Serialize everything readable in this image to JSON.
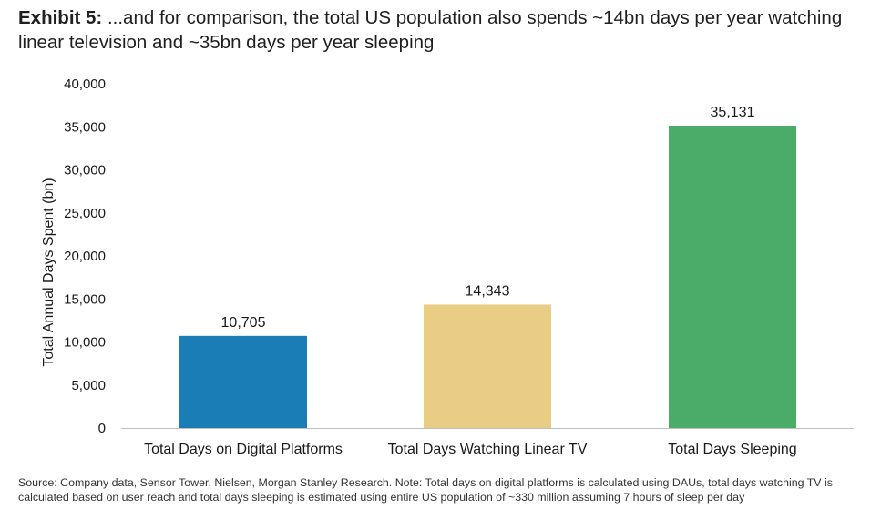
{
  "exhibit_label": "Exhibit 5:",
  "title_text": " ...and for comparison, the total US population also spends ~14bn days per year watching linear television and ~35bn days per year sleeping",
  "source_text": "Source: Company data, Sensor Tower, Nielsen, Morgan Stanley Research. Note: Total days on digital platforms is calculated using DAUs, total days watching TV is calculated based on user reach and total days sleeping is estimated using entire US population of ~330 million assuming 7 hours of sleep per day",
  "chart_data": {
    "type": "bar",
    "title": "...and for comparison, the total US population also spends ~14bn days per year watching linear television and ~35bn days per year sleeping",
    "xlabel": "",
    "ylabel": "Total Annual Days Spent (bn)",
    "ylim": [
      0,
      40000
    ],
    "yticks": [
      0,
      5000,
      10000,
      15000,
      20000,
      25000,
      30000,
      35000,
      40000
    ],
    "ytick_labels": [
      "0",
      "5,000",
      "10,000",
      "15,000",
      "20,000",
      "25,000",
      "30,000",
      "35,000",
      "40,000"
    ],
    "grid": false,
    "categories": [
      "Total Days on Digital Platforms",
      "Total Days Watching Linear TV",
      "Total Days Sleeping"
    ],
    "values": [
      10705,
      14343,
      35131
    ],
    "value_labels": [
      "10,705",
      "14,343",
      "35,131"
    ],
    "colors": [
      "#1a7db5",
      "#e9cd84",
      "#4aac68"
    ]
  }
}
